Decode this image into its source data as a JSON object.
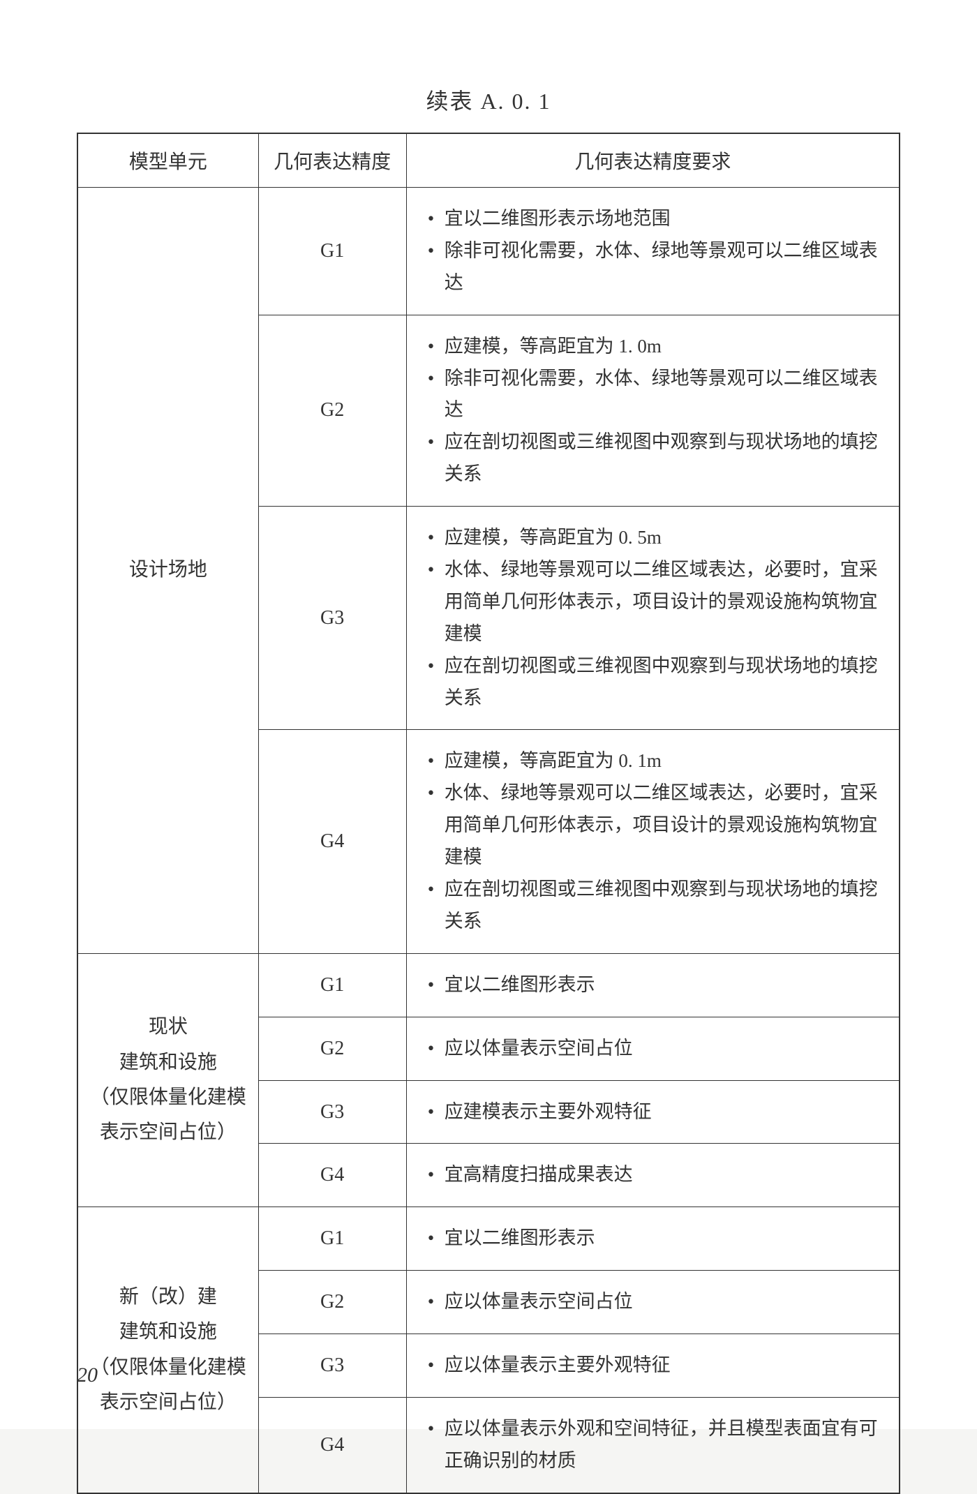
{
  "title": "续表 A. 0. 1",
  "page_number": "20",
  "style": {
    "page_bg": "#ffffff",
    "body_bg": "#f5f5f3",
    "border_color": "#333333",
    "text_color": "#333333",
    "title_fontsize": 32,
    "header_fontsize": 28,
    "cell_fontsize": 28,
    "req_fontsize": 27,
    "page_num_fontsize": 30,
    "border_width_outer": 2,
    "border_width_inner": 1.5,
    "col_widths": [
      "22%",
      "18%",
      "60%"
    ]
  },
  "columns": [
    "模型单元",
    "几何表达精度",
    "几何表达精度要求"
  ],
  "sections": [
    {
      "unit": "设计场地",
      "rows": [
        {
          "grade": "G1",
          "reqs": [
            "宜以二维图形表示场地范围",
            "除非可视化需要，水体、绿地等景观可以二维区域表达"
          ]
        },
        {
          "grade": "G2",
          "reqs": [
            "应建模，等高距宜为 1. 0m",
            "除非可视化需要，水体、绿地等景观可以二维区域表达",
            "应在剖切视图或三维视图中观察到与现状场地的填挖关系"
          ]
        },
        {
          "grade": "G3",
          "reqs": [
            "应建模，等高距宜为 0. 5m",
            "水体、绿地等景观可以二维区域表达，必要时，宜采用简单几何形体表示，项目设计的景观设施构筑物宜建模",
            "应在剖切视图或三维视图中观察到与现状场地的填挖关系"
          ]
        },
        {
          "grade": "G4",
          "reqs": [
            "应建模，等高距宜为 0. 1m",
            "水体、绿地等景观可以二维区域表达，必要时，宜采用简单几何形体表示，项目设计的景观设施构筑物宜建模",
            "应在剖切视图或三维视图中观察到与现状场地的填挖关系"
          ]
        }
      ]
    },
    {
      "unit": "现状\n建筑和设施\n（仅限体量化建模\n表示空间占位）",
      "rows": [
        {
          "grade": "G1",
          "reqs": [
            "宜以二维图形表示"
          ]
        },
        {
          "grade": "G2",
          "reqs": [
            "应以体量表示空间占位"
          ]
        },
        {
          "grade": "G3",
          "reqs": [
            "应建模表示主要外观特征"
          ]
        },
        {
          "grade": "G4",
          "reqs": [
            "宜高精度扫描成果表达"
          ]
        }
      ]
    },
    {
      "unit": "新（改）建\n建筑和设施\n（仅限体量化建模\n表示空间占位）",
      "rows": [
        {
          "grade": "G1",
          "reqs": [
            "宜以二维图形表示"
          ]
        },
        {
          "grade": "G2",
          "reqs": [
            "应以体量表示空间占位"
          ]
        },
        {
          "grade": "G3",
          "reqs": [
            "应以体量表示主要外观特征"
          ]
        },
        {
          "grade": "G4",
          "reqs": [
            "应以体量表示外观和空间特征，并且模型表面宜有可正确识别的材质"
          ]
        }
      ]
    }
  ]
}
